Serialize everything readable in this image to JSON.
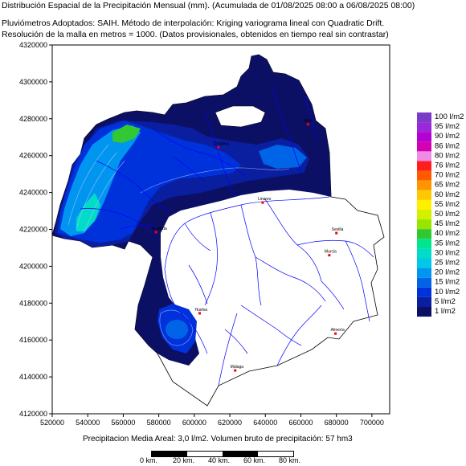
{
  "header": {
    "title": "Distribución Espacial de la Precipitación Mensual (mm). (Acumulada de 01/08/2025 08:00 a 06/08/2025 08:00)",
    "method_line": "Pluviómetros Adoptados: SAIH.  Método de interpolación: Kriging variograma lineal con Quadratic Drift.",
    "resolution_line": "Resolución de la malla en metros = 1000. (Datos provisionales, obtenidos en tiempo real sin contrastar)"
  },
  "axes": {
    "y_ticks": [
      "4320000",
      "4300000",
      "4280000",
      "4260000",
      "4240000",
      "4220000",
      "4200000",
      "4180000",
      "4160000",
      "4140000",
      "4120000"
    ],
    "x_ticks": [
      "520000",
      "540000",
      "560000",
      "580000",
      "600000",
      "620000",
      "640000",
      "660000",
      "680000",
      "700000"
    ]
  },
  "legend": {
    "items": [
      {
        "label": "100 l/m2",
        "color": "#7a3cc8"
      },
      {
        "label": "95 l/m2",
        "color": "#9a28d8"
      },
      {
        "label": "90 l/m2",
        "color": "#b400d2"
      },
      {
        "label": "86 l/m2",
        "color": "#d400b4"
      },
      {
        "label": "80 l/m2",
        "color": "#f08ce8"
      },
      {
        "label": "76 l/m2",
        "color": "#ff1e1e"
      },
      {
        "label": "70 l/m2",
        "color": "#ff5a00"
      },
      {
        "label": "65 l/m2",
        "color": "#ff9600"
      },
      {
        "label": "60 l/m2",
        "color": "#ffc800"
      },
      {
        "label": "55 l/m2",
        "color": "#fff000"
      },
      {
        "label": "50 l/m2",
        "color": "#d2f000"
      },
      {
        "label": "45 l/m2",
        "color": "#96e600"
      },
      {
        "label": "40 l/m2",
        "color": "#32c832"
      },
      {
        "label": "35 l/m2",
        "color": "#00e68c"
      },
      {
        "label": "30 l/m2",
        "color": "#00dcc8"
      },
      {
        "label": "25 l/m2",
        "color": "#00c8e6"
      },
      {
        "label": "20 l/m2",
        "color": "#0096f0"
      },
      {
        "label": "15 l/m2",
        "color": "#0064e6"
      },
      {
        "label": "10 l/m2",
        "color": "#0032dc"
      },
      {
        "label": "5 l/m2",
        "color": "#0a1ea0"
      },
      {
        "label": "1 l/m2",
        "color": "#0c1064"
      }
    ]
  },
  "cities": [
    {
      "label": "Córdoba",
      "x": 613500,
      "y": 4264500
    },
    {
      "label": "Jaén",
      "x": 664000,
      "y": 4277000
    },
    {
      "label": "Linares",
      "x": 638500,
      "y": 4234500
    },
    {
      "label": "Granada",
      "x": 578500,
      "y": 4218500
    },
    {
      "label": "Sevilla",
      "x": 680000,
      "y": 4218000
    },
    {
      "label": "Murcia",
      "x": 676000,
      "y": 4206000
    },
    {
      "label": "Huelva",
      "x": 603000,
      "y": 4174500
    },
    {
      "label": "Almería",
      "x": 679500,
      "y": 4163500
    },
    {
      "label": "Málaga",
      "x": 623000,
      "y": 4143500
    }
  ],
  "footer": {
    "summary": "Precipitacion Media Areal: 3,0 l/m2. Volumen bruto de precipitación: 57 hm3",
    "scale_labels": [
      "0 km.",
      "20 km.",
      "40 km.",
      "60 km.",
      "80 km."
    ]
  },
  "colors": {
    "basin_fill": "#ffffff",
    "river": "#0000ff",
    "dark_rain": "#0c1064",
    "mid_rain": "#0a1ea0",
    "light_rain": "#0032dc"
  }
}
